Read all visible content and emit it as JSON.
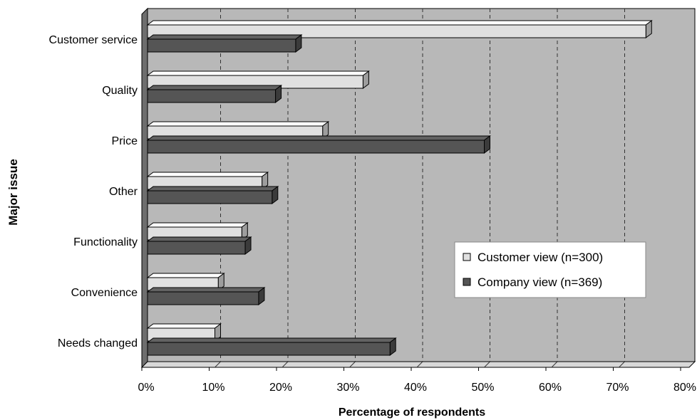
{
  "chart_data": {
    "type": "bar",
    "orientation": "horizontal",
    "three_d": true,
    "xlabel": "Percentage of respondents",
    "ylabel": "Major issue",
    "xlim": [
      0,
      80
    ],
    "x_ticks": [
      "0%",
      "10%",
      "20%",
      "30%",
      "40%",
      "50%",
      "60%",
      "70%",
      "80%"
    ],
    "grid": "vertical dashed",
    "categories": [
      "Customer service",
      "Quality",
      "Price",
      "Other",
      "Functionality",
      "Convenience",
      "Needs changed"
    ],
    "series": [
      {
        "name": "Customer view (n=300)",
        "color": "#e0e0e0",
        "values": [
          74,
          32,
          26,
          17,
          14,
          10.5,
          10
        ]
      },
      {
        "name": "Company view (n=369)",
        "color": "#555555",
        "values": [
          22,
          19,
          50,
          18.5,
          14.5,
          16.5,
          36
        ]
      }
    ],
    "legend_position": "right",
    "colors": {
      "plot_background": "#b8b8b8",
      "wall_side": "#6e6e6e",
      "floor": "#d8d8d8"
    }
  }
}
